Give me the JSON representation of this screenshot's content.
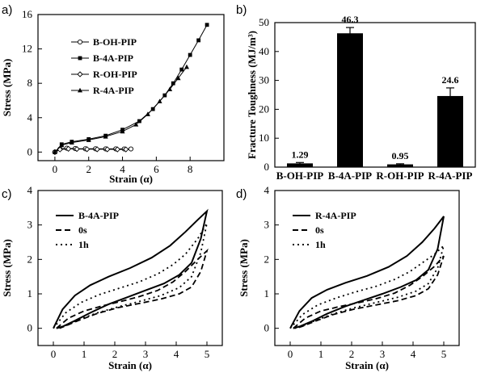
{
  "chart_data": [
    {
      "panel": "a)",
      "type": "line",
      "xlabel": "Strain (α)",
      "ylabel": "Stress (MPa)",
      "xlim": [
        -1,
        10
      ],
      "ylim": [
        -1,
        16
      ],
      "xticks": [
        "0",
        "2",
        "4",
        "6",
        "8"
      ],
      "yticks": [
        "0",
        "4",
        "8",
        "12",
        "16"
      ],
      "legend_position": "top-left",
      "series": [
        {
          "name": "B-OH-PIP",
          "marker": "open-circle",
          "x": [
            0,
            0.3,
            0.7,
            1.2,
            1.8,
            2.4,
            3.0,
            3.6,
            4.1,
            4.5
          ],
          "y": [
            0,
            0.35,
            0.45,
            0.4,
            0.38,
            0.38,
            0.37,
            0.37,
            0.36,
            0.36
          ]
        },
        {
          "name": "B-4A-PIP",
          "marker": "filled-square",
          "x": [
            0,
            0.4,
            1.0,
            2.0,
            3.0,
            4.0,
            5.0,
            5.8,
            6.5,
            7.0,
            7.5,
            8.0,
            8.5,
            9.0
          ],
          "y": [
            0,
            0.9,
            1.2,
            1.5,
            1.9,
            2.6,
            3.6,
            5.0,
            6.6,
            8.0,
            9.6,
            11.3,
            13.0,
            14.8
          ]
        },
        {
          "name": "R-OH-PIP",
          "marker": "open-diamond",
          "x": [
            0,
            0.3,
            0.8,
            1.3,
            1.9,
            2.5,
            3.1,
            3.7,
            4.2
          ],
          "y": [
            0,
            0.3,
            0.38,
            0.35,
            0.33,
            0.32,
            0.32,
            0.31,
            0.31
          ]
        },
        {
          "name": "R-4A-PIP",
          "marker": "filled-triangle",
          "x": [
            0,
            0.4,
            1.0,
            2.0,
            3.0,
            4.0,
            4.8,
            5.5,
            6.2,
            6.8,
            7.3,
            7.8
          ],
          "y": [
            0,
            0.8,
            1.1,
            1.4,
            1.8,
            2.4,
            3.2,
            4.4,
            5.9,
            7.3,
            8.6,
            9.9
          ]
        }
      ]
    },
    {
      "panel": "b)",
      "type": "bar",
      "ylabel": "Fracture Toughness (MJ/m³)",
      "ylim": [
        0,
        50
      ],
      "yticks": [
        "0",
        "10",
        "20",
        "30",
        "40",
        "50"
      ],
      "categories": [
        "B-OH-PIP",
        "B-4A-PIP",
        "R-OH-PIP",
        "R-4A-PIP"
      ],
      "values": [
        1.29,
        46.3,
        0.95,
        24.6
      ],
      "errors": [
        0.3,
        2.0,
        0.2,
        2.8
      ],
      "labels": [
        "1.29",
        "46.3",
        "0.95",
        "24.6"
      ],
      "bar_color": "#000000"
    },
    {
      "panel": "c)",
      "type": "line",
      "xlabel": "Strain (α)",
      "ylabel": "Stress (MPa)",
      "xlim": [
        -0.5,
        5.5
      ],
      "ylim": [
        -0.5,
        4
      ],
      "xticks": [
        "0",
        "1",
        "2",
        "3",
        "4",
        "5"
      ],
      "yticks": [
        "0",
        "1",
        "2",
        "3",
        "4"
      ],
      "legend_position": "top-left",
      "series": [
        {
          "name": "B-4A-PIP",
          "style": "solid",
          "loading": {
            "x": [
              0,
              0.3,
              0.7,
              1.2,
              1.8,
              2.5,
              3.2,
              3.8,
              4.3,
              4.7,
              5.0
            ],
            "y": [
              0,
              0.55,
              0.95,
              1.25,
              1.5,
              1.75,
              2.05,
              2.4,
              2.8,
              3.15,
              3.4
            ]
          },
          "unloading": {
            "x": [
              5.0,
              4.8,
              4.5,
              4.1,
              3.6,
              3.0,
              2.4,
              1.8,
              1.2,
              0.7,
              0.3,
              0.1
            ],
            "y": [
              3.4,
              2.6,
              1.9,
              1.55,
              1.3,
              1.1,
              0.9,
              0.7,
              0.45,
              0.22,
              0.05,
              0
            ]
          }
        },
        {
          "name": "0s",
          "style": "dashed",
          "loading": {
            "x": [
              0.1,
              0.5,
              1.0,
              1.6,
              2.2,
              2.8,
              3.4,
              3.9,
              4.3,
              4.7,
              5.0
            ],
            "y": [
              0,
              0.3,
              0.5,
              0.65,
              0.78,
              0.92,
              1.1,
              1.35,
              1.65,
              2.0,
              2.25
            ]
          },
          "unloading": {
            "x": [
              5.0,
              4.8,
              4.5,
              4.1,
              3.5,
              2.8,
              2.1,
              1.4,
              0.8,
              0.4,
              0.2
            ],
            "y": [
              2.25,
              1.65,
              1.2,
              1.0,
              0.85,
              0.72,
              0.6,
              0.42,
              0.22,
              0.07,
              0
            ]
          }
        },
        {
          "name": "1h",
          "style": "dotted",
          "loading": {
            "x": [
              0,
              0.4,
              0.9,
              1.5,
              2.1,
              2.8,
              3.4,
              3.9,
              4.3,
              4.7,
              5.0
            ],
            "y": [
              0,
              0.45,
              0.75,
              0.98,
              1.15,
              1.35,
              1.58,
              1.85,
              2.15,
              2.6,
              3.05
            ]
          },
          "unloading": {
            "x": [
              5.0,
              4.8,
              4.5,
              4.1,
              3.5,
              2.8,
              2.1,
              1.4,
              0.8,
              0.4,
              0.15
            ],
            "y": [
              3.05,
              2.2,
              1.5,
              1.18,
              0.95,
              0.78,
              0.62,
              0.44,
              0.24,
              0.08,
              0
            ]
          }
        }
      ]
    },
    {
      "panel": "d)",
      "type": "line",
      "xlabel": "Strain (α)",
      "ylabel": "Stress (MPa)",
      "xlim": [
        -0.5,
        5.5
      ],
      "ylim": [
        -0.5,
        4
      ],
      "xticks": [
        "0",
        "1",
        "2",
        "3",
        "4",
        "5"
      ],
      "yticks": [
        "0",
        "1",
        "2",
        "3",
        "4"
      ],
      "legend_position": "top-left",
      "series": [
        {
          "name": "R-4A-PIP",
          "style": "solid",
          "loading": {
            "x": [
              0,
              0.3,
              0.7,
              1.2,
              1.8,
              2.5,
              3.2,
              3.8,
              4.3,
              4.7,
              5.0
            ],
            "y": [
              0,
              0.5,
              0.88,
              1.12,
              1.32,
              1.52,
              1.78,
              2.1,
              2.5,
              2.9,
              3.25
            ]
          },
          "unloading": {
            "x": [
              5.0,
              4.8,
              4.5,
              4.1,
              3.6,
              3.0,
              2.4,
              1.8,
              1.2,
              0.7,
              0.3,
              0.1
            ],
            "y": [
              3.25,
              2.3,
              1.7,
              1.4,
              1.2,
              1.0,
              0.82,
              0.64,
              0.42,
              0.2,
              0.05,
              0
            ]
          }
        },
        {
          "name": "0s",
          "style": "dashed",
          "loading": {
            "x": [
              0.1,
              0.5,
              1.0,
              1.6,
              2.2,
              2.8,
              3.4,
              3.9,
              4.3,
              4.7,
              5.0
            ],
            "y": [
              0,
              0.3,
              0.5,
              0.63,
              0.74,
              0.86,
              1.02,
              1.25,
              1.5,
              1.8,
              2.1
            ]
          },
          "unloading": {
            "x": [
              5.0,
              4.8,
              4.5,
              4.1,
              3.5,
              2.8,
              2.1,
              1.4,
              0.8,
              0.4,
              0.2
            ],
            "y": [
              2.1,
              1.55,
              1.15,
              0.95,
              0.8,
              0.68,
              0.56,
              0.4,
              0.2,
              0.06,
              0
            ]
          }
        },
        {
          "name": "1h",
          "style": "dotted",
          "loading": {
            "x": [
              0,
              0.4,
              0.9,
              1.5,
              2.1,
              2.8,
              3.4,
              3.9,
              4.3,
              4.7,
              5.0
            ],
            "y": [
              0,
              0.4,
              0.68,
              0.88,
              1.05,
              1.22,
              1.42,
              1.65,
              1.9,
              2.15,
              2.4
            ]
          },
          "unloading": {
            "x": [
              5.0,
              4.8,
              4.5,
              4.1,
              3.5,
              2.8,
              2.1,
              1.4,
              0.8,
              0.4,
              0.15
            ],
            "y": [
              2.4,
              1.75,
              1.3,
              1.08,
              0.9,
              0.75,
              0.6,
              0.42,
              0.22,
              0.07,
              0
            ]
          }
        }
      ]
    }
  ]
}
